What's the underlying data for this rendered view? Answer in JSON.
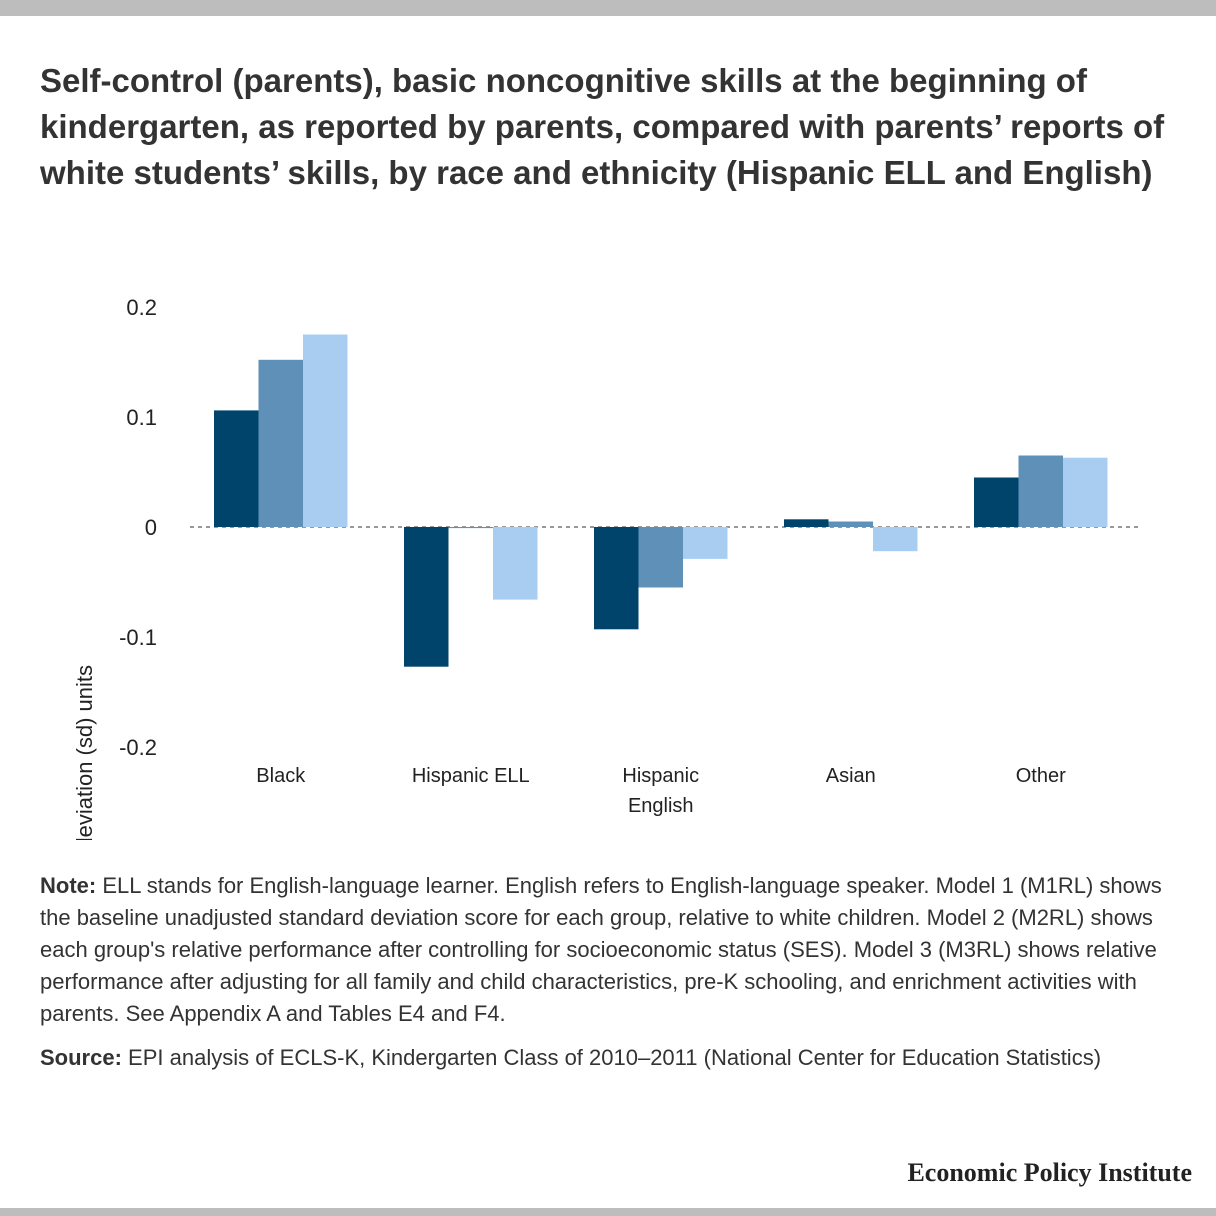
{
  "title": "Self-control (parents), basic noncognitive skills at the beginning of kindergarten, as reported by parents, compared with parents’ reports of white students’ skills, by race and ethnicity (Hispanic ELL and English)",
  "note_label": "Note:",
  "note_text": " ELL stands for English-language learner. English refers to English-language speaker. Model 1 (M1RL) shows the baseline unadjusted standard deviation score for each group, relative to white children. Model 2 (M2RL) shows each group's relative performance after controlling for socioeconomic status (SES). Model 3 (M3RL) shows relative performance after adjusting for all family and child characteristics, pre-K schooling, and enrichment activities with parents. See Appendix A and Tables E4 and F4.",
  "source_label": "Source:",
  "source_text": " EPI analysis of ECLS-K, Kindergarten Class of 2010–2011 (National Center for Education Statistics)",
  "brand": "Economic Policy Institute",
  "chart_data": {
    "type": "bar",
    "ylabel": "Standard deviation (sd) units",
    "ylim": [
      -0.2,
      0.2
    ],
    "yticks": [
      0.2,
      0.1,
      0,
      -0.1,
      -0.2
    ],
    "ytick_labels": [
      "0.2",
      "0.1",
      "0",
      "-0.1",
      "-0.2"
    ],
    "zero_line": "dashed",
    "categories": [
      [
        "Black"
      ],
      [
        "Hispanic ELL"
      ],
      [
        "Hispanic",
        "English"
      ],
      [
        "Asian"
      ],
      [
        "Other"
      ]
    ],
    "series": [
      {
        "color": "#00446b",
        "values": [
          0.106,
          -0.127,
          -0.093,
          0.007,
          0.045
        ]
      },
      {
        "color": "#5f91b8",
        "values": [
          0.152,
          -0.001,
          -0.055,
          0.005,
          0.065
        ]
      },
      {
        "color": "#a9cdf0",
        "values": [
          0.175,
          -0.066,
          -0.029,
          -0.022,
          0.063
        ]
      }
    ]
  }
}
